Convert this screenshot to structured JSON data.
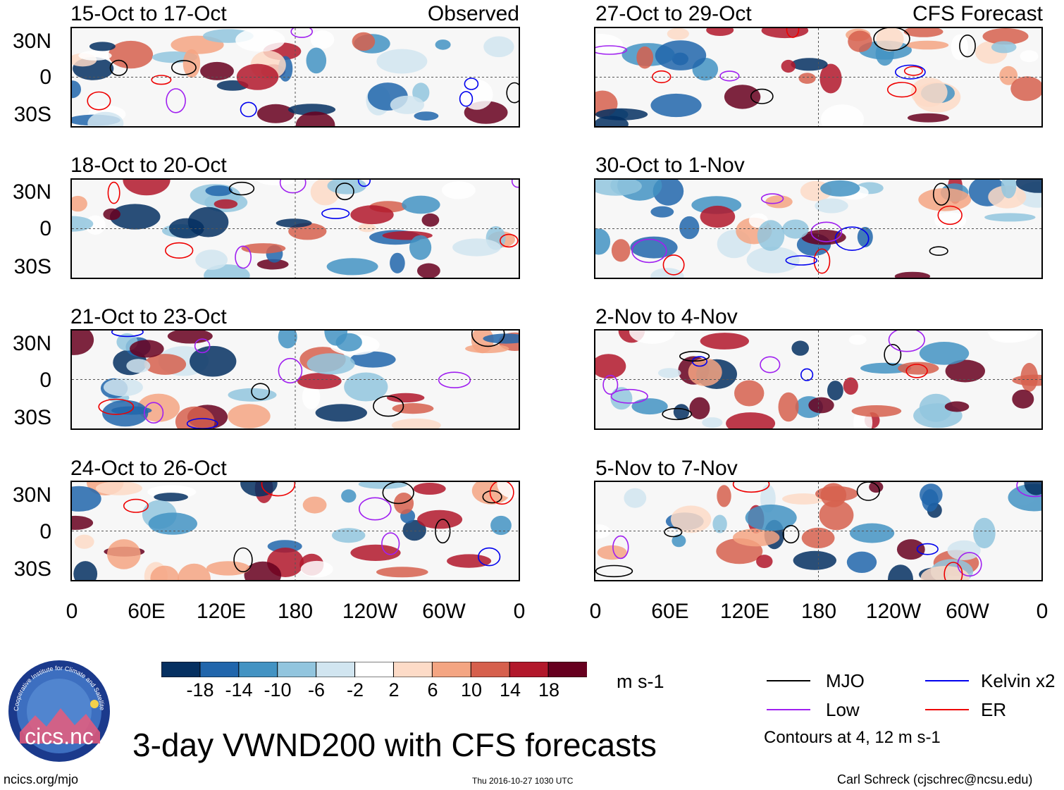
{
  "header": {
    "observed_tag": "Observed",
    "forecast_tag": "CFS Forecast"
  },
  "panels": [
    {
      "title": "15-Oct to 17-Oct",
      "column": "observed"
    },
    {
      "title": "18-Oct to 20-Oct",
      "column": "observed"
    },
    {
      "title": "21-Oct to 23-Oct",
      "column": "observed"
    },
    {
      "title": "24-Oct to 26-Oct",
      "column": "observed"
    },
    {
      "title": "27-Oct to 29-Oct",
      "column": "forecast"
    },
    {
      "title": "30-Oct to 1-Nov",
      "column": "forecast"
    },
    {
      "title": "2-Nov to 4-Nov",
      "column": "forecast"
    },
    {
      "title": "5-Nov to 7-Nov",
      "column": "forecast"
    }
  ],
  "axes": {
    "lat_labels": [
      "30N",
      "0",
      "30S"
    ],
    "lon_labels": [
      "0",
      "60E",
      "120E",
      "180",
      "120W",
      "60W",
      "0"
    ]
  },
  "colorbar": {
    "labels": [
      "-18",
      "-14",
      "-10",
      "-6",
      "-2",
      "2",
      "6",
      "10",
      "14",
      "18"
    ],
    "units": "m s-1",
    "colors": [
      "#053061",
      "#2166ac",
      "#4393c3",
      "#92c5de",
      "#d1e5f0",
      "#ffffff",
      "#fddbc7",
      "#f4a582",
      "#d6604d",
      "#b2182b",
      "#67001f"
    ]
  },
  "legend": {
    "items": [
      {
        "label": "MJO",
        "color": "#000000"
      },
      {
        "label": "Kelvin x2",
        "color": "#0000ee"
      },
      {
        "label": "Low",
        "color": "#a020f0"
      },
      {
        "label": "ER",
        "color": "#ee0000"
      }
    ],
    "note": "Contours at 4, 12 m s-1"
  },
  "title": "3-day VWND200 with CFS forecasts",
  "logo_text": "cics.nc",
  "logo_ring_text": "Cooperative Institute for Climate and Satellites",
  "footer": {
    "url": "ncics.org/mjo",
    "timestamp": "Thu 2016-10-27 1030 UTC",
    "author": "Carl Schreck (cjschrec@ncsu.edu)"
  }
}
